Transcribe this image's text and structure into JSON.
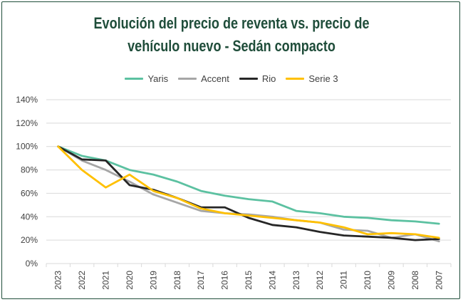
{
  "chart_data": {
    "type": "line",
    "title_lines": [
      "Evolución del precio de reventa vs. precio de",
      "vehículo nuevo - Sedán compacto"
    ],
    "xlabel": "",
    "ylabel": "",
    "categories": [
      "2023",
      "2022",
      "2021",
      "2020",
      "2019",
      "2018",
      "2017",
      "2016",
      "2015",
      "2014",
      "2013",
      "2012",
      "2011",
      "2010",
      "2009",
      "2008",
      "2007"
    ],
    "ylim": [
      0,
      140
    ],
    "yticks": [
      "0%",
      "20%",
      "40%",
      "60%",
      "80%",
      "100%",
      "120%",
      "140%"
    ],
    "grid": "horizontal",
    "legend_position": "top",
    "series": [
      {
        "name": "Yaris",
        "color": "#5cc1a1",
        "values": [
          100,
          92,
          88,
          80,
          76,
          70,
          62,
          58,
          55,
          53,
          45,
          43,
          40,
          39,
          37,
          36,
          34
        ]
      },
      {
        "name": "Accent",
        "color": "#a6a6a6",
        "values": [
          100,
          88,
          80,
          70,
          59,
          52,
          45,
          43,
          42,
          40,
          37,
          35,
          29,
          28,
          22,
          25,
          19
        ]
      },
      {
        "name": "Rio",
        "color": "#262626",
        "values": [
          100,
          89,
          88,
          67,
          63,
          56,
          48,
          48,
          39,
          33,
          31,
          27,
          24,
          23,
          22,
          20,
          21
        ]
      },
      {
        "name": "Serie 3",
        "color": "#ffc000",
        "values": [
          100,
          80,
          65,
          76,
          62,
          56,
          47,
          43,
          41,
          39,
          37,
          35,
          31,
          25,
          26,
          25,
          22
        ]
      }
    ]
  }
}
